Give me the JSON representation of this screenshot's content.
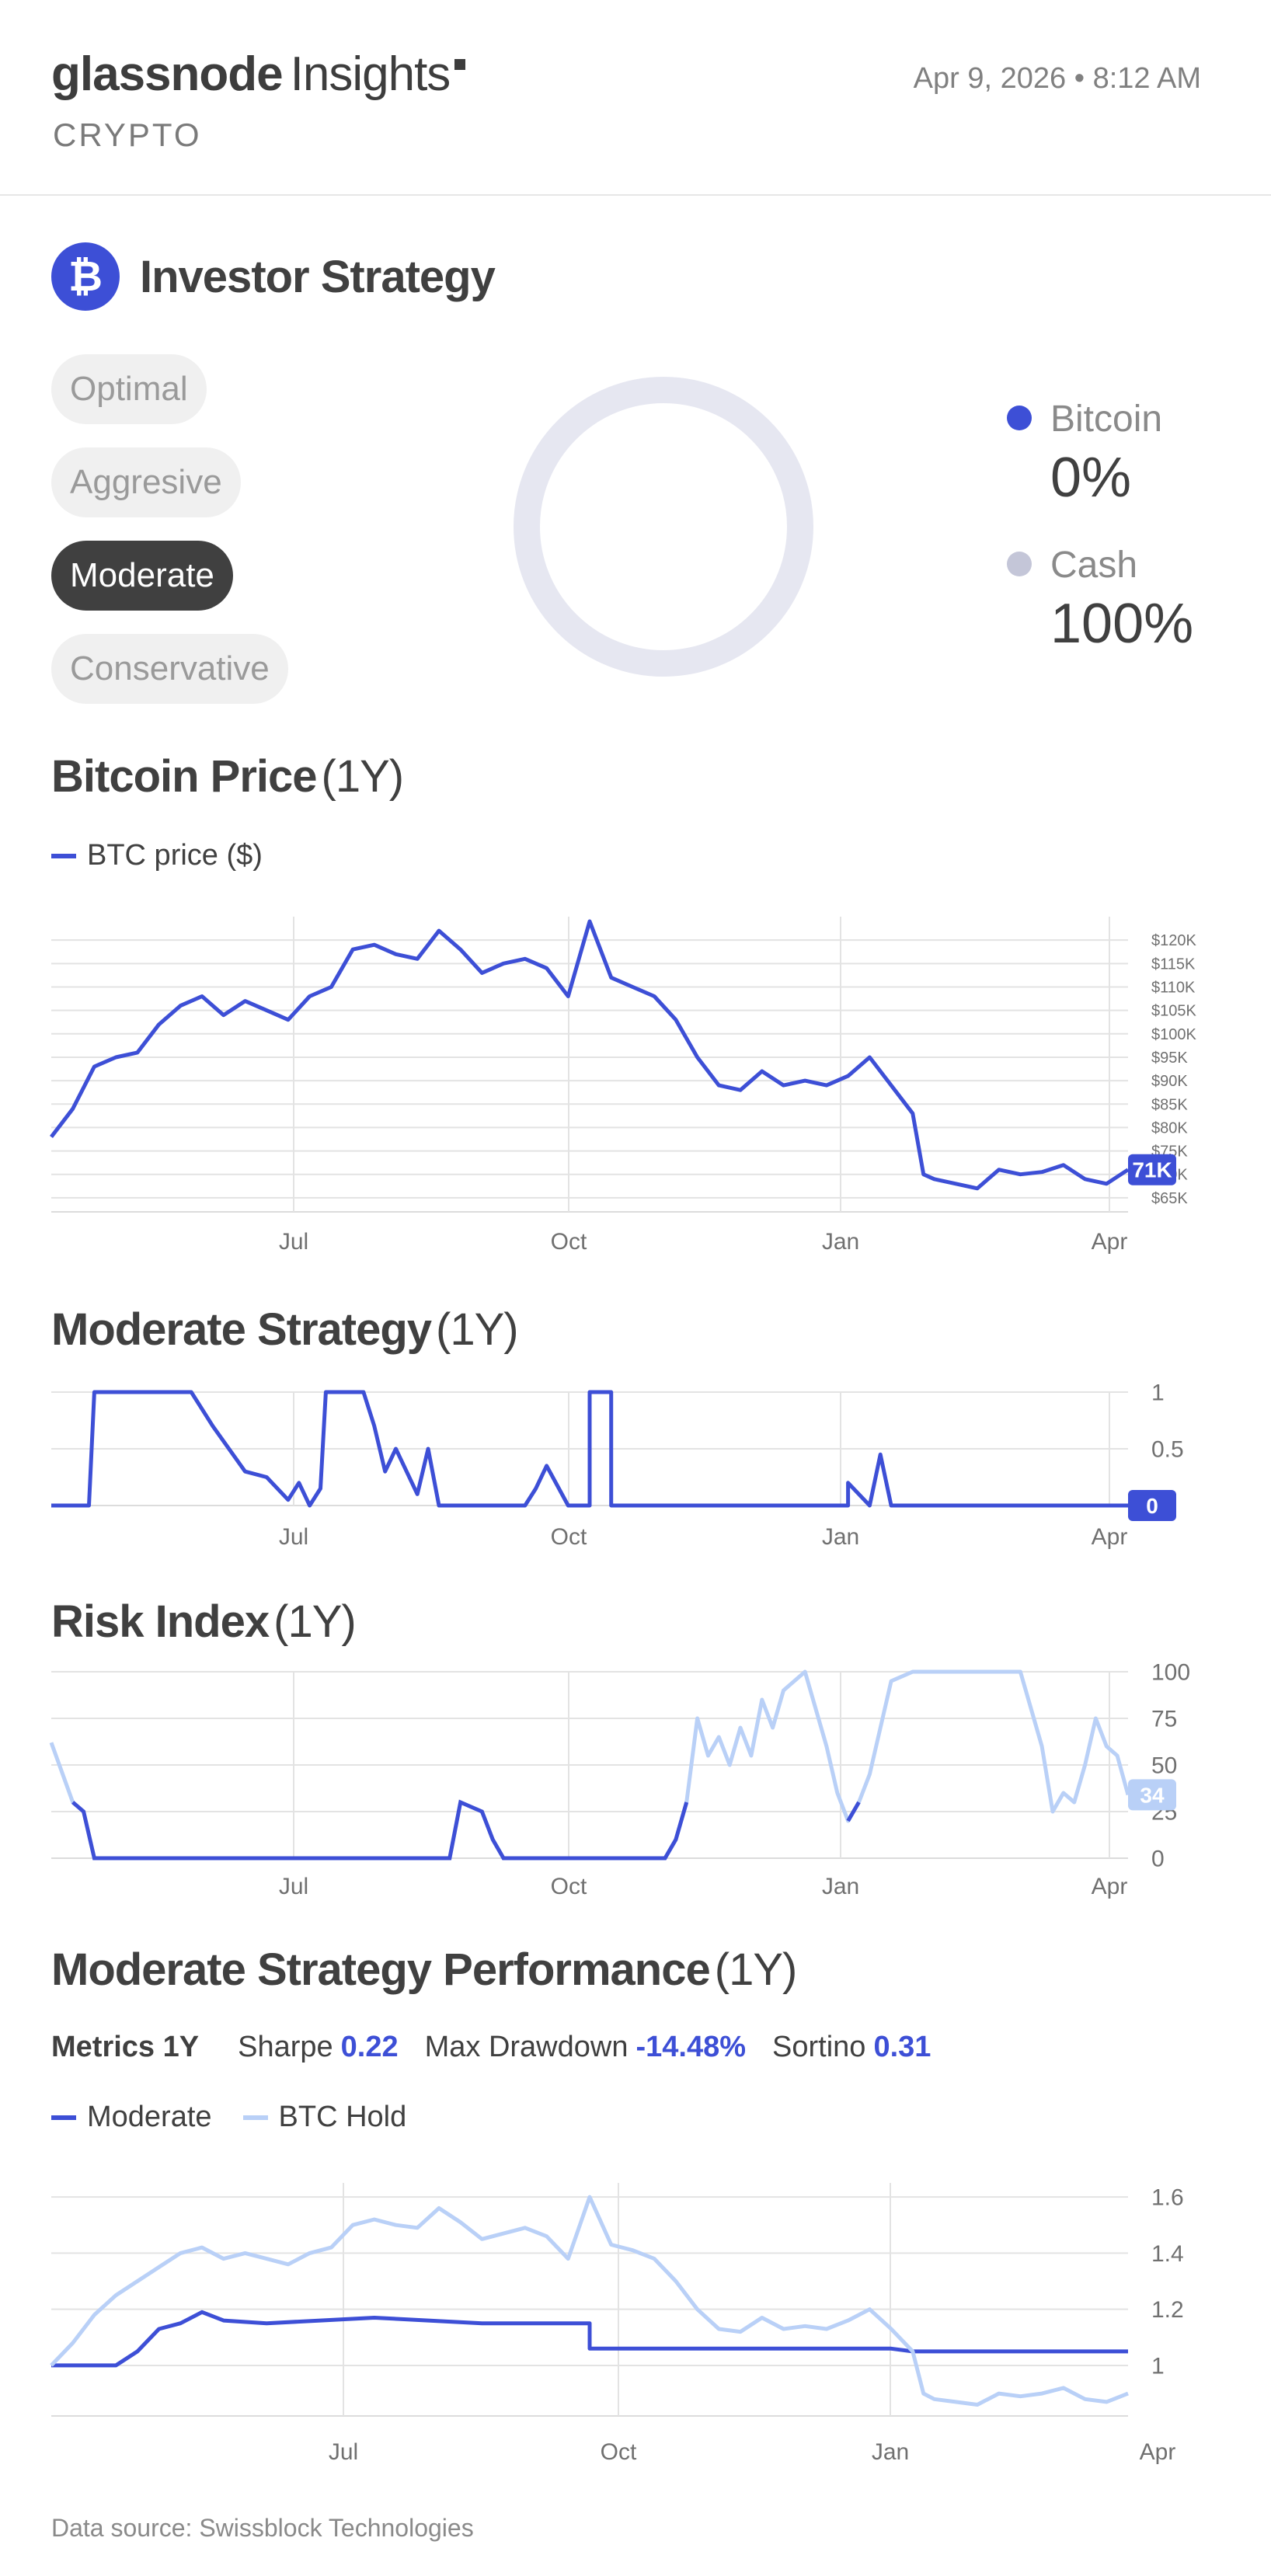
{
  "header": {
    "brand": "glassnode",
    "product": "Insights",
    "category": "CRYPTO",
    "datetime": "Apr 9, 2026 • 8:12 AM"
  },
  "strategy": {
    "icon": "bitcoin-icon",
    "title": "Investor Strategy",
    "options": [
      "Optimal",
      "Aggresive",
      "Moderate",
      "Conservative"
    ],
    "selected": "Moderate"
  },
  "allocation": {
    "items": [
      {
        "name": "Bitcoin",
        "value": "0%",
        "color": "#3d4fd6"
      },
      {
        "name": "Cash",
        "value": "100%",
        "color": "#c4c6d8"
      }
    ],
    "bitcoin_fraction": 0.0
  },
  "sections": {
    "price": {
      "title": "Bitcoin Price",
      "period": "(1Y)",
      "legend": "BTC price ($)"
    },
    "strategy": {
      "title": "Moderate Strategy",
      "period": "(1Y)"
    },
    "risk": {
      "title": "Risk Index",
      "period": "(1Y)"
    },
    "performance": {
      "title": "Moderate Strategy Performance",
      "period": "(1Y)"
    }
  },
  "metrics": {
    "label": "Metrics 1Y",
    "sharpe_label": "Sharpe",
    "sharpe": "0.22",
    "drawdown_label": "Max Drawdown",
    "drawdown": "-14.48%",
    "sortino_label": "Sortino",
    "sortino": "0.31"
  },
  "footer": "Data source: Swissblock Technologies",
  "colors": {
    "accent": "#3d4fd6",
    "light": "#b9d0f7",
    "grid": "#e3e3e3",
    "text": "#404040"
  },
  "chart_data": [
    {
      "type": "line",
      "title": "Bitcoin Price (1Y)",
      "xticks": [
        "Jul",
        "Oct",
        "Jan",
        "Apr"
      ],
      "yticks": [
        "$65K",
        "$70K",
        "$75K",
        "$80K",
        "$85K",
        "$90K",
        "$95K",
        "$100K",
        "$105K",
        "$110K",
        "$115K",
        "$120K"
      ],
      "ylim": [
        62000,
        125000
      ],
      "last_label": "71K",
      "series": [
        {
          "name": "BTC price ($)",
          "x": [
            0,
            0.02,
            0.04,
            0.06,
            0.08,
            0.1,
            0.12,
            0.14,
            0.16,
            0.18,
            0.2,
            0.22,
            0.24,
            0.26,
            0.28,
            0.3,
            0.32,
            0.34,
            0.36,
            0.38,
            0.4,
            0.42,
            0.44,
            0.46,
            0.48,
            0.5,
            0.52,
            0.54,
            0.56,
            0.58,
            0.6,
            0.62,
            0.64,
            0.66,
            0.68,
            0.7,
            0.72,
            0.74,
            0.76,
            0.78,
            0.8,
            0.81,
            0.82,
            0.84,
            0.86,
            0.88,
            0.9,
            0.92,
            0.94,
            0.96,
            0.98,
            1.0
          ],
          "y": [
            78000,
            84000,
            93000,
            95000,
            96000,
            102000,
            106000,
            108000,
            104000,
            107000,
            105000,
            103000,
            108000,
            110000,
            118000,
            119000,
            117000,
            116000,
            122000,
            118000,
            113000,
            115000,
            116000,
            114000,
            108000,
            124000,
            112000,
            110000,
            108000,
            103000,
            95000,
            89000,
            88000,
            92000,
            89000,
            90000,
            89000,
            91000,
            95000,
            89000,
            83000,
            70000,
            69000,
            68000,
            67000,
            71000,
            70000,
            70500,
            72000,
            69000,
            68000,
            71000
          ]
        }
      ]
    },
    {
      "type": "line",
      "title": "Moderate Strategy (1Y)",
      "xticks": [
        "Jul",
        "Oct",
        "Jan",
        "Apr"
      ],
      "yticks": [
        "0.5",
        "1"
      ],
      "ylim": [
        0,
        1
      ],
      "last_label": "0",
      "series": [
        {
          "name": "Moderate",
          "x": [
            0,
            0.035,
            0.04,
            0.13,
            0.15,
            0.18,
            0.2,
            0.22,
            0.23,
            0.24,
            0.25,
            0.255,
            0.265,
            0.29,
            0.3,
            0.31,
            0.32,
            0.34,
            0.35,
            0.36,
            0.37,
            0.4,
            0.43,
            0.44,
            0.45,
            0.46,
            0.48,
            0.49,
            0.5,
            0.5,
            0.52,
            0.52,
            0.74,
            0.74,
            0.76,
            0.77,
            0.78,
            1.0
          ],
          "y": [
            0,
            0,
            1,
            1,
            0.7,
            0.3,
            0.25,
            0.05,
            0.2,
            0,
            0.15,
            1,
            1,
            1,
            0.7,
            0.3,
            0.5,
            0.1,
            0.5,
            0,
            0,
            0,
            0,
            0,
            0.15,
            0.35,
            0,
            0,
            0,
            1,
            1,
            0,
            0,
            0.2,
            0,
            0.45,
            0,
            0
          ]
        }
      ]
    },
    {
      "type": "line",
      "title": "Risk Index (1Y)",
      "xticks": [
        "Jul",
        "Oct",
        "Jan",
        "Apr"
      ],
      "yticks": [
        "0",
        "25",
        "50",
        "75",
        "100"
      ],
      "ylim": [
        0,
        100
      ],
      "last_label": "34",
      "series": [
        {
          "name": "Risk",
          "x": [
            0,
            0.02,
            0.03,
            0.04,
            0.05,
            0.07,
            0.1,
            0.15,
            0.2,
            0.25,
            0.3,
            0.35,
            0.37,
            0.38,
            0.4,
            0.41,
            0.42,
            0.43,
            0.45,
            0.5,
            0.55,
            0.56,
            0.57,
            0.58,
            0.59,
            0.6,
            0.61,
            0.62,
            0.63,
            0.64,
            0.65,
            0.66,
            0.67,
            0.68,
            0.7,
            0.72,
            0.73,
            0.74,
            0.75,
            0.76,
            0.78,
            0.8,
            0.82,
            0.84,
            0.86,
            0.88,
            0.9,
            0.92,
            0.93,
            0.94,
            0.95,
            0.96,
            0.97,
            0.98,
            0.99,
            1.0
          ],
          "y": [
            62,
            30,
            25,
            0,
            0,
            0,
            0,
            0,
            0,
            0,
            0,
            0,
            0,
            30,
            25,
            10,
            0,
            0,
            0,
            0,
            0,
            0,
            0,
            10,
            30,
            75,
            55,
            65,
            50,
            70,
            55,
            85,
            70,
            90,
            100,
            60,
            35,
            20,
            30,
            45,
            95,
            100,
            100,
            100,
            100,
            100,
            100,
            60,
            25,
            35,
            30,
            50,
            75,
            60,
            55,
            34
          ]
        }
      ]
    },
    {
      "type": "line",
      "title": "Moderate Strategy Performance (1Y)",
      "xticks": [
        "Jul",
        "Oct",
        "Jan",
        "Apr"
      ],
      "yticks": [
        "1",
        "1.2",
        "1.4",
        "1.6"
      ],
      "ylim": [
        0.82,
        1.65
      ],
      "series": [
        {
          "name": "Moderate",
          "x": [
            0,
            0.02,
            0.04,
            0.06,
            0.08,
            0.1,
            0.12,
            0.14,
            0.16,
            0.2,
            0.25,
            0.3,
            0.35,
            0.4,
            0.45,
            0.5,
            0.5,
            0.6,
            0.7,
            0.78,
            0.8,
            0.9,
            1.0
          ],
          "y": [
            1.0,
            1.0,
            1.0,
            1.0,
            1.05,
            1.13,
            1.15,
            1.19,
            1.16,
            1.15,
            1.16,
            1.17,
            1.16,
            1.15,
            1.15,
            1.15,
            1.06,
            1.06,
            1.06,
            1.06,
            1.05,
            1.05,
            1.05
          ]
        },
        {
          "name": "BTC Hold",
          "x": [
            0,
            0.02,
            0.04,
            0.06,
            0.08,
            0.1,
            0.12,
            0.14,
            0.16,
            0.18,
            0.2,
            0.22,
            0.24,
            0.26,
            0.28,
            0.3,
            0.32,
            0.34,
            0.36,
            0.38,
            0.4,
            0.42,
            0.44,
            0.46,
            0.48,
            0.5,
            0.52,
            0.54,
            0.56,
            0.58,
            0.6,
            0.62,
            0.64,
            0.66,
            0.68,
            0.7,
            0.72,
            0.74,
            0.76,
            0.78,
            0.8,
            0.81,
            0.82,
            0.84,
            0.86,
            0.88,
            0.9,
            0.92,
            0.94,
            0.96,
            0.98,
            1.0
          ],
          "y": [
            1.0,
            1.08,
            1.18,
            1.25,
            1.3,
            1.35,
            1.4,
            1.42,
            1.38,
            1.4,
            1.38,
            1.36,
            1.4,
            1.42,
            1.5,
            1.52,
            1.5,
            1.49,
            1.56,
            1.51,
            1.45,
            1.47,
            1.49,
            1.46,
            1.38,
            1.6,
            1.43,
            1.41,
            1.38,
            1.3,
            1.2,
            1.13,
            1.12,
            1.17,
            1.13,
            1.14,
            1.13,
            1.16,
            1.2,
            1.13,
            1.05,
            0.9,
            0.88,
            0.87,
            0.86,
            0.9,
            0.89,
            0.9,
            0.92,
            0.88,
            0.87,
            0.9
          ]
        }
      ]
    }
  ]
}
